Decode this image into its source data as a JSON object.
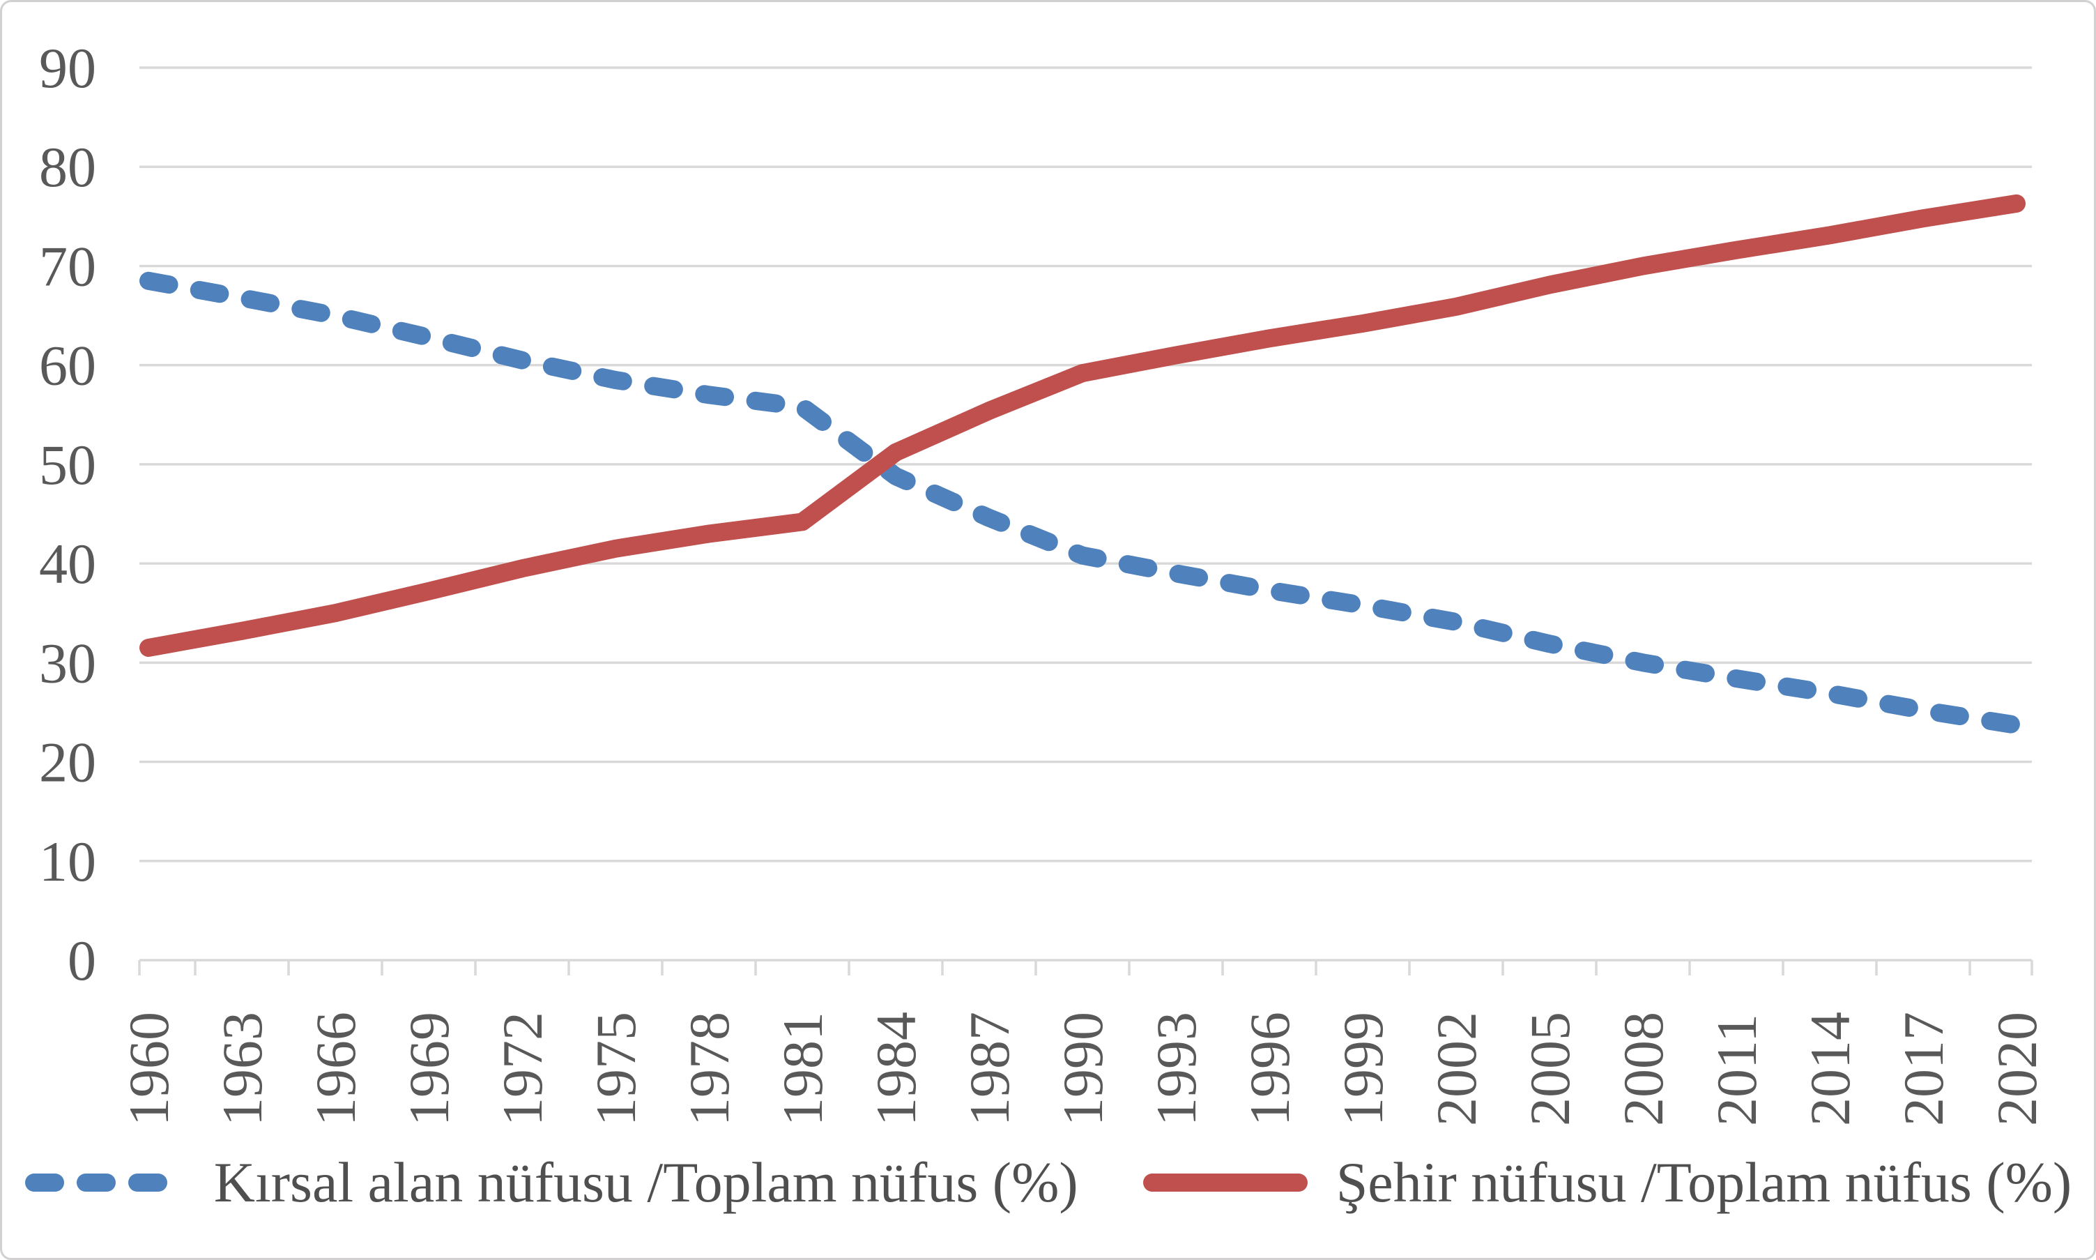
{
  "chart_data": {
    "type": "line",
    "title": "",
    "xlabel": "",
    "ylabel": "",
    "categories": [
      "1960",
      "1963",
      "1966",
      "1969",
      "1972",
      "1975",
      "1978",
      "1981",
      "1984",
      "1987",
      "1990",
      "1993",
      "1996",
      "1999",
      "2002",
      "2005",
      "2008",
      "2011",
      "2014",
      "2017",
      "2020"
    ],
    "series": [
      {
        "name": "Kırsal alan nüfusu /Toplam nüfus (%)",
        "color": "#4F81BD",
        "style": "dashed",
        "values": [
          68.5,
          66.8,
          65.0,
          62.8,
          60.5,
          58.5,
          57.0,
          55.8,
          48.8,
          44.6,
          40.8,
          39.0,
          37.3,
          35.8,
          34.1,
          31.9,
          30.0,
          28.4,
          26.9,
          25.2,
          23.7
        ]
      },
      {
        "name": "Şehir nüfusu /Toplam nüfus (%)",
        "color": "#C0504D",
        "style": "solid",
        "values": [
          31.5,
          33.2,
          35.0,
          37.2,
          39.5,
          41.5,
          43.0,
          44.2,
          51.2,
          55.4,
          59.2,
          61.0,
          62.7,
          64.2,
          65.9,
          68.1,
          70.0,
          71.6,
          73.1,
          74.8,
          76.3
        ]
      }
    ],
    "ylim": [
      0,
      90
    ],
    "yticks": [
      0,
      10,
      20,
      30,
      40,
      50,
      60,
      70,
      80,
      90
    ],
    "grid": true,
    "legend_position": "bottom",
    "axis_label_color": "#595959",
    "gridline_color": "#d9d9d9"
  }
}
